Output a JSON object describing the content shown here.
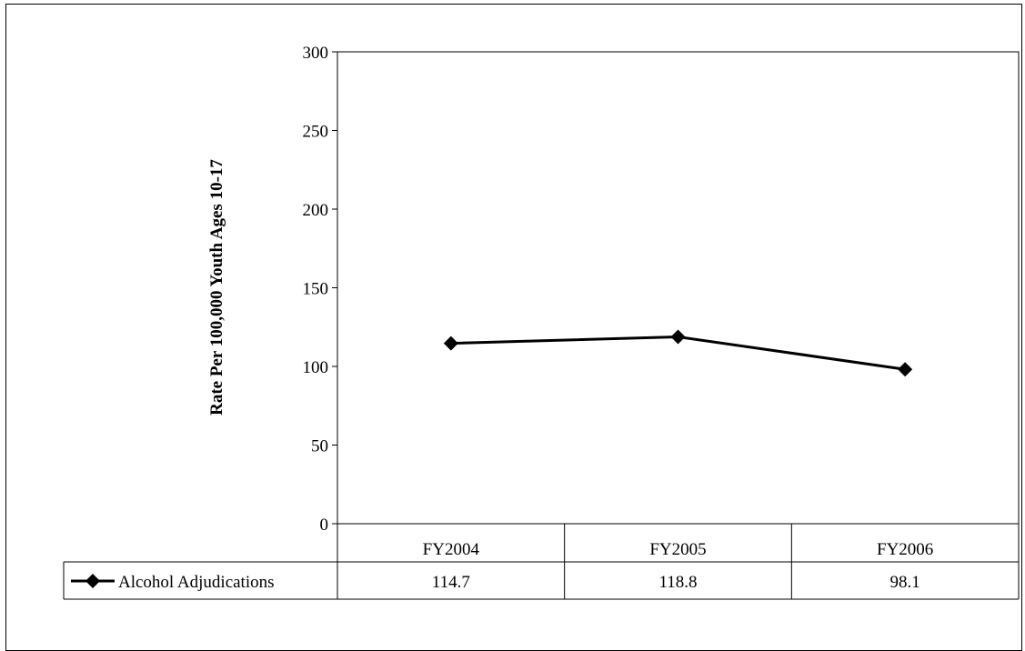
{
  "chart_data": {
    "type": "line",
    "title": "",
    "xlabel": "",
    "ylabel": "Rate Per 100,000 Youth Ages 10-17",
    "categories": [
      "FY2004",
      "FY2005",
      "FY2006"
    ],
    "ylim": [
      0,
      300
    ],
    "yticks": [
      0,
      50,
      100,
      150,
      200,
      250,
      300
    ],
    "grid": false,
    "legend": "data-table",
    "series": [
      {
        "name": "Alcohol Adjudications",
        "values": [
          114.7,
          118.8,
          98.1
        ],
        "value_labels": [
          "114.7",
          "118.8",
          "98.1"
        ],
        "color": "#000000",
        "marker": "diamond"
      }
    ]
  }
}
